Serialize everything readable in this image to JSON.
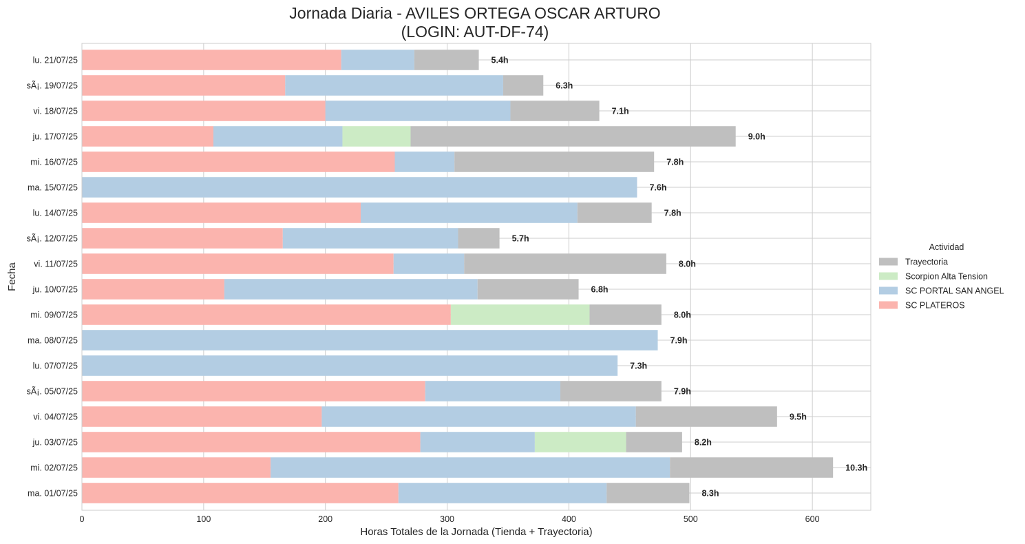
{
  "chart_data": {
    "type": "bar",
    "orientation": "horizontal",
    "stacked": true,
    "title_line1": "Jornada Diaria - AVILES ORTEGA OSCAR ARTURO",
    "title_line2": "(LOGIN: AUT-DF-74)",
    "xlabel": "Horas Totales de la Jornada (Tienda + Trayectoria)",
    "ylabel": "Fecha",
    "xlim": [
      0,
      648
    ],
    "xticks": [
      0,
      100,
      200,
      300,
      400,
      500,
      600
    ],
    "grid": true,
    "legend": {
      "title": "Actividad",
      "placement": "right",
      "entries": [
        "Trayectoria",
        "Scorpion Alta Tension",
        "SC PORTAL SAN ANGEL",
        "SC PLATEROS"
      ]
    },
    "colors": {
      "SC PLATEROS": "#fbb4ae",
      "SC PORTAL SAN ANGEL": "#b3cde3",
      "Scorpion Alta Tension": "#ccebc5",
      "Trayectoria": "#bfbfbf"
    },
    "stack_order": [
      "SC PLATEROS",
      "SC PORTAL SAN ANGEL",
      "Scorpion Alta Tension",
      "Trayectoria"
    ],
    "categories": [
      "lu. 21/07/25",
      "sÃ¡. 19/07/25",
      "vi. 18/07/25",
      "ju. 17/07/25",
      "mi. 16/07/25",
      "ma. 15/07/25",
      "lu. 14/07/25",
      "sÃ¡. 12/07/25",
      "vi. 11/07/25",
      "ju. 10/07/25",
      "mi. 09/07/25",
      "ma. 08/07/25",
      "lu. 07/07/25",
      "sÃ¡. 05/07/25",
      "vi. 04/07/25",
      "ju. 03/07/25",
      "mi. 02/07/25",
      "ma. 01/07/25"
    ],
    "series": [
      {
        "name": "SC PLATEROS",
        "values": [
          213,
          167,
          200,
          108,
          257,
          0,
          229,
          165,
          256,
          117,
          303,
          0,
          0,
          282,
          197,
          278,
          155,
          260
        ]
      },
      {
        "name": "SC PORTAL SAN ANGEL",
        "values": [
          60,
          179,
          152,
          106,
          49,
          456,
          178,
          144,
          58,
          208,
          0,
          473,
          440,
          111,
          258,
          94,
          328,
          171
        ]
      },
      {
        "name": "Scorpion Alta Tension",
        "values": [
          0,
          0,
          0,
          56,
          0,
          0,
          0,
          0,
          0,
          0,
          114,
          0,
          0,
          0,
          0,
          75,
          0,
          0
        ]
      },
      {
        "name": "Trayectoria",
        "values": [
          53,
          33,
          73,
          267,
          164,
          0,
          61,
          34,
          166,
          83,
          59,
          0,
          0,
          83,
          116,
          46,
          134,
          68
        ]
      }
    ],
    "total_labels": [
      "5.4h",
      "6.3h",
      "7.1h",
      "9.0h",
      "7.8h",
      "7.6h",
      "7.8h",
      "5.7h",
      "8.0h",
      "6.8h",
      "8.0h",
      "7.9h",
      "7.3h",
      "7.9h",
      "9.5h",
      "8.2h",
      "10.3h",
      "8.3h"
    ]
  }
}
